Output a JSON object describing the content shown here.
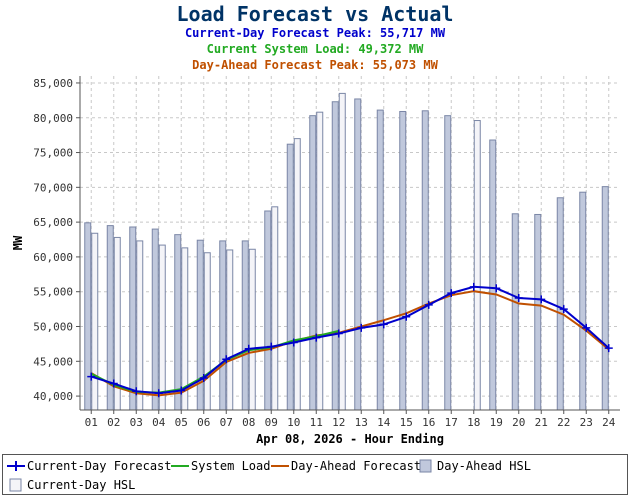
{
  "header": {
    "title": "Load Forecast vs Actual",
    "line1": "Current-Day Forecast Peak:  55,717 MW",
    "line2": "Current System Load:  49,372 MW",
    "line3": "Day-Ahead Forecast Peak:  55,073 MW"
  },
  "chart_data": {
    "type": "bar+line",
    "title": "Load Forecast vs Actual",
    "xlabel": "Apr 08, 2026 - Hour Ending",
    "ylabel": "MW",
    "ylim": [
      38000,
      86000
    ],
    "yticks": [
      40000,
      45000,
      50000,
      55000,
      60000,
      65000,
      70000,
      75000,
      80000,
      85000
    ],
    "ytick_labels": [
      "40,000",
      "45,000",
      "50,000",
      "55,000",
      "60,000",
      "65,000",
      "70,000",
      "75,000",
      "80,000",
      "85,000"
    ],
    "categories": [
      "01",
      "02",
      "03",
      "04",
      "05",
      "06",
      "07",
      "08",
      "09",
      "10",
      "11",
      "12",
      "13",
      "14",
      "15",
      "16",
      "17",
      "18",
      "19",
      "20",
      "21",
      "22",
      "23",
      "24"
    ],
    "grid": true,
    "legend_position": "bottom",
    "series": [
      {
        "name": "Current-Day Forecast",
        "kind": "line",
        "color": "#0000cc",
        "marker": "+",
        "values": [
          42800,
          41800,
          40700,
          40400,
          40800,
          42600,
          45300,
          46800,
          47100,
          47700,
          48400,
          49000,
          49800,
          50300,
          51400,
          53100,
          54800,
          55700,
          55500,
          54100,
          53900,
          52500,
          49800,
          46900
        ]
      },
      {
        "name": "System Load",
        "kind": "line",
        "color": "#22aa22",
        "values": [
          43200,
          41600,
          40600,
          40500,
          41000,
          42800,
          45200,
          46600,
          47000,
          48000,
          48600,
          49372,
          null,
          null,
          null,
          null,
          null,
          null,
          null,
          null,
          null,
          null,
          null,
          null
        ]
      },
      {
        "name": "Day-Ahead Forecast",
        "kind": "line",
        "color": "#c05000",
        "values": [
          43300,
          41400,
          40400,
          40100,
          40500,
          42200,
          44900,
          46200,
          46800,
          47900,
          48700,
          49100,
          50000,
          50900,
          51900,
          53300,
          54500,
          55073,
          54600,
          53300,
          53000,
          51700,
          49400,
          46700
        ]
      },
      {
        "name": "Day-Ahead HSL",
        "kind": "bar",
        "color": "#c0c8dc",
        "values": [
          64900,
          64500,
          64300,
          64000,
          63200,
          62400,
          62300,
          62300,
          66600,
          76200,
          80300,
          82300,
          82700,
          81100,
          80900,
          81000,
          80300,
          null,
          76800,
          66200,
          66100,
          68500,
          69300,
          70100
        ]
      },
      {
        "name": "Current-Day HSL",
        "kind": "bar",
        "color": "#f4f4f8",
        "values": [
          63400,
          62800,
          62300,
          61700,
          61300,
          60600,
          61000,
          61100,
          67200,
          77000,
          80800,
          83500,
          null,
          null,
          null,
          null,
          null,
          79600,
          null,
          null,
          null,
          null,
          null,
          null
        ]
      }
    ]
  }
}
